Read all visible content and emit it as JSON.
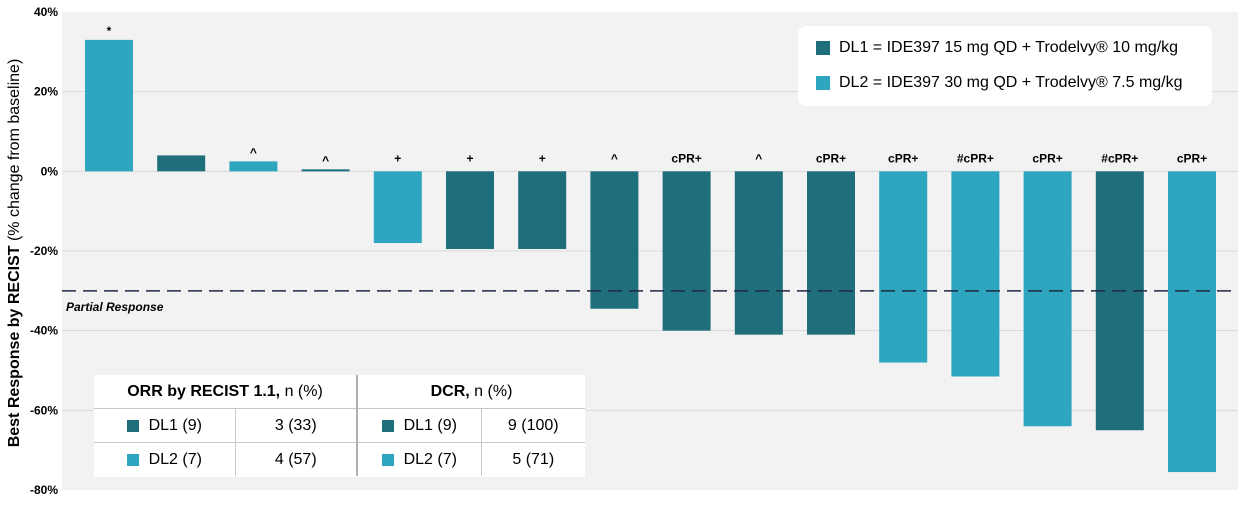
{
  "chart_data": {
    "type": "bar",
    "title": "",
    "xlabel": "",
    "ylabel_bold": "Best Response by RECIST",
    "ylabel_rest": " (% change from baseline)",
    "ylim": [
      -80,
      40
    ],
    "yticks": [
      40,
      20,
      0,
      -20,
      -40,
      -60,
      -80
    ],
    "ytick_labels": [
      "40%",
      "20%",
      "0%",
      "-20%",
      "-40%",
      "-60%",
      "-80%"
    ],
    "grid": true,
    "reference_line": {
      "value": -30,
      "label": "Partial Response"
    },
    "bars": [
      {
        "value": 33,
        "group": "DL2",
        "annotation": "*"
      },
      {
        "value": 4,
        "group": "DL1",
        "annotation": ""
      },
      {
        "value": 2.5,
        "group": "DL2",
        "annotation": "^"
      },
      {
        "value": 0.5,
        "group": "DL1",
        "annotation": "^"
      },
      {
        "value": -18,
        "group": "DL2",
        "annotation": "+"
      },
      {
        "value": -19.5,
        "group": "DL1",
        "annotation": "+"
      },
      {
        "value": -19.5,
        "group": "DL1",
        "annotation": "+"
      },
      {
        "value": -34.5,
        "group": "DL1",
        "annotation": "^"
      },
      {
        "value": -40,
        "group": "DL1",
        "annotation": "cPR+"
      },
      {
        "value": -41,
        "group": "DL1",
        "annotation": "^"
      },
      {
        "value": -41,
        "group": "DL1",
        "annotation": "cPR+"
      },
      {
        "value": -48,
        "group": "DL2",
        "annotation": "cPR+"
      },
      {
        "value": -51.5,
        "group": "DL2",
        "annotation": "#cPR+"
      },
      {
        "value": -64,
        "group": "DL2",
        "annotation": "cPR+"
      },
      {
        "value": -65,
        "group": "DL1",
        "annotation": "#cPR+"
      },
      {
        "value": -75.5,
        "group": "DL2",
        "annotation": "cPR+"
      }
    ],
    "legend": {
      "placement": "top-right",
      "items": [
        {
          "key": "DL1",
          "label": "DL1 = IDE397 15 mg QD + Trodelvy® 10 mg/kg",
          "color": "#1f6e7c"
        },
        {
          "key": "DL2",
          "label": "DL2 = IDE397 30 mg QD + Trodelvy® 7.5 mg/kg",
          "color": "#2ea6c0"
        }
      ]
    }
  },
  "colors": {
    "DL1": "#1f6e7c",
    "DL2": "#2ea6c0",
    "plot_bg": "#f2f2f2",
    "grid": "#d9d9d9",
    "ref_line": "#1f2a44"
  },
  "summary_table": {
    "orr_header_bold": "ORR by RECIST 1.1,",
    "orr_header_rest": " n (%)",
    "dcr_header_bold": "DCR,",
    "dcr_header_rest": " n (%)",
    "rows": [
      {
        "group": "DL1",
        "orr_label": "DL1 (9)",
        "orr_value": "3 (33)",
        "dcr_label": "DL1 (9)",
        "dcr_value": "9 (100)"
      },
      {
        "group": "DL2",
        "orr_label": "DL2 (7)",
        "orr_value": "4 (57)",
        "dcr_label": "DL2 (7)",
        "dcr_value": "5 (71)"
      }
    ]
  }
}
